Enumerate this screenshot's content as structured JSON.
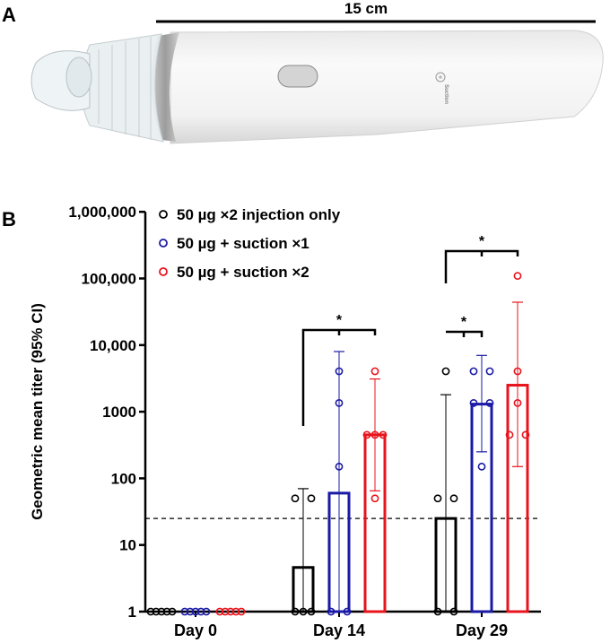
{
  "panel_a": {
    "label": "A",
    "scale_label": "15 cm",
    "device_text": "Suction"
  },
  "panel_b": {
    "label": "B"
  },
  "chart_data": {
    "type": "bar",
    "ylabel": "Geometric mean titer (95% CI)",
    "yscale": "log",
    "ylim": [
      1,
      1000000
    ],
    "yticks": [
      1,
      10,
      100,
      1000,
      10000,
      100000,
      1000000
    ],
    "ytick_labels": [
      "1",
      "10",
      "100",
      "1000",
      "10,000",
      "100,000",
      "1,000,000"
    ],
    "categories": [
      "Day 0",
      "Day 14",
      "Day 29"
    ],
    "threshold": 25,
    "legend_position": "top-left",
    "series": [
      {
        "name": "50 µg ×2 injection only",
        "color": "#000000",
        "values": [
          1,
          4.6,
          25
        ],
        "ci": [
          [
            1,
            1
          ],
          [
            1,
            70
          ],
          [
            1,
            1800
          ]
        ],
        "points": [
          [
            1,
            1,
            1,
            1,
            1
          ],
          [
            1,
            1,
            1,
            50,
            50
          ],
          [
            1,
            1,
            50,
            50,
            4050
          ]
        ]
      },
      {
        "name": "50 µg + suction ×1",
        "color": "#1a1aa6",
        "values": [
          1,
          60,
          1300
        ],
        "ci": [
          [
            1,
            1
          ],
          [
            1,
            8000
          ],
          [
            250,
            7000
          ]
        ],
        "points": [
          [
            1,
            1,
            1,
            1,
            1
          ],
          [
            1,
            1,
            150,
            1350,
            4050
          ],
          [
            150,
            1350,
            1350,
            4050,
            4050
          ]
        ]
      },
      {
        "name": "50 µg + suction ×2",
        "color": "#e8141c",
        "values": [
          1,
          450,
          2500
        ],
        "ci": [
          [
            1,
            1
          ],
          [
            65,
            3100
          ],
          [
            150,
            44000
          ]
        ],
        "points": [
          [
            1,
            1,
            1,
            1,
            1
          ],
          [
            50,
            450,
            450,
            450,
            4050
          ],
          [
            450,
            450,
            1350,
            4050,
            109350
          ]
        ]
      }
    ],
    "significance": [
      {
        "category": "Day 14",
        "from": 0,
        "to": 2,
        "label": "*"
      },
      {
        "category": "Day 29",
        "from": 0,
        "to": 1,
        "label": "*"
      },
      {
        "category": "Day 29",
        "from": 0,
        "to": 2,
        "label": "*"
      }
    ]
  }
}
